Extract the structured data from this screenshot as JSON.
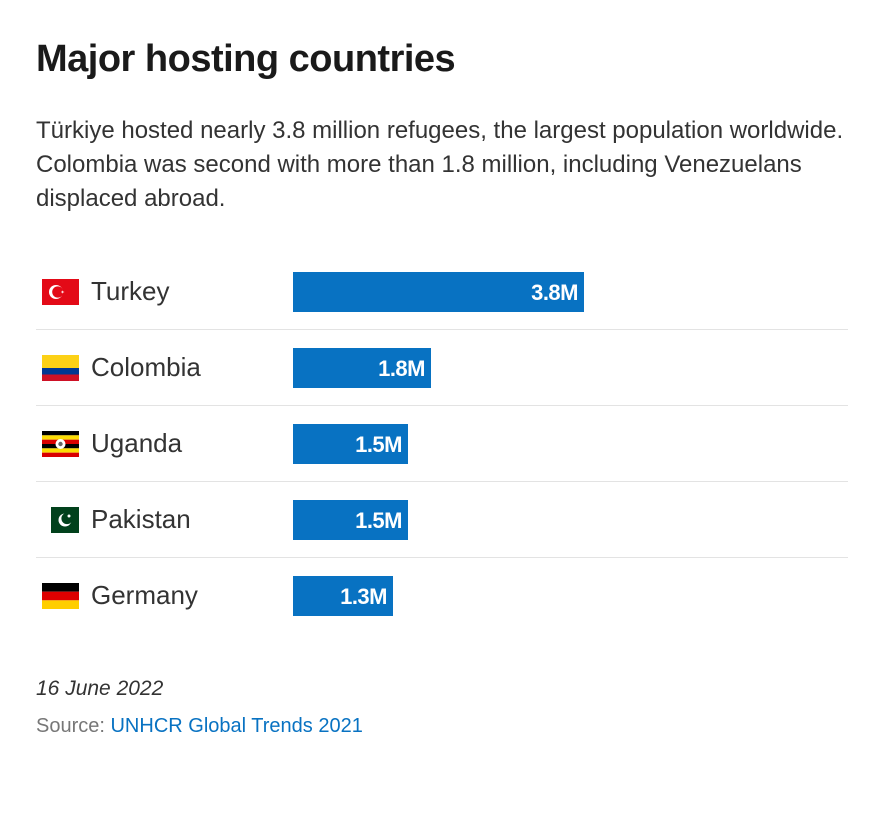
{
  "header": {
    "title": "Major hosting countries",
    "subtitle": "Türkiye hosted nearly 3.8 million refugees, the largest population worldwide. Colombia was second with more than 1.8 million, including Venezuelans displaced abroad."
  },
  "chart_data": {
    "type": "bar",
    "orientation": "horizontal",
    "categories": [
      "Turkey",
      "Colombia",
      "Uganda",
      "Pakistan",
      "Germany"
    ],
    "values": [
      3.8,
      1.8,
      1.5,
      1.5,
      1.3
    ],
    "value_labels": [
      "3.8M",
      "1.8M",
      "1.5M",
      "1.5M",
      "1.3M"
    ],
    "flags": [
      "turkey-flag-icon",
      "colombia-flag-icon",
      "uganda-flag-icon",
      "pakistan-flag-icon",
      "germany-flag-icon"
    ],
    "unit": "million refugees",
    "bar_color": "#0872c2",
    "grid": false,
    "legend": "none"
  },
  "footer": {
    "date": "16 June 2022",
    "source_label": "Source: ",
    "source_link": "UNHCR Global Trends 2021"
  },
  "colors": {
    "accent": "#0872c2",
    "divider": "#e3e3e3"
  }
}
